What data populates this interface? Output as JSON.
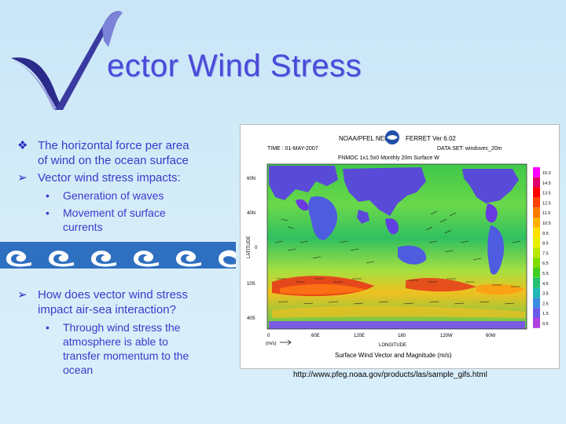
{
  "slide": {
    "title": "ector Wind Stress",
    "colors": {
      "title": "#4a4ad8",
      "bullet_text": "#3a3acb",
      "background": "#c9e6f7"
    },
    "bullets_top": [
      {
        "marker": "❖",
        "text_line1": "The horizontal force per area",
        "text_line2": "of wind on the ocean surface"
      },
      {
        "marker": "➢",
        "text_line1": "Vector wind stress impacts:",
        "text_line2": ""
      }
    ],
    "sub_bullets_top": [
      {
        "marker": "•",
        "text_line1": "Generation of waves",
        "text_line2": ""
      },
      {
        "marker": "•",
        "text_line1": "Movement of surface",
        "text_line2": "currents"
      }
    ],
    "bullets_bottom": [
      {
        "marker": "➢",
        "text_line1": "How does vector wind stress",
        "text_line2": "impact air-sea interaction?"
      }
    ],
    "sub_bullets_bottom": [
      {
        "marker": "•",
        "lines": [
          "Through wind stress the",
          "atmosphere is able to",
          "transfer momentum to the",
          "ocean"
        ]
      }
    ],
    "map": {
      "header_line1": "NOAA/PFEL NEPS",
      "header_right": "FERRET Ver 6.02",
      "time": "TIME : 01-MAY-2007",
      "dataset": "DATA SET: winduvec_20m",
      "subtitle": "FNMOC 1x1.5x0 Monthly 20m Surface W",
      "lat_ticks": [
        "60N",
        "40N",
        "0",
        "10S",
        "40S"
      ],
      "lon_ticks": [
        "0",
        "60E",
        "120E",
        "180",
        "120W",
        "60W"
      ],
      "lat_label": "LATITUDE",
      "lon_label": "LONGITUDE",
      "scale_units": "(m/s)",
      "caption": "Surface Wind Vector and Magnitude (m/s)",
      "colorbar_labels": [
        "15.0",
        "14.5",
        "13.5",
        "12.5",
        "11.5",
        "10.5",
        "9.5",
        "8.5",
        "7.5",
        "6.5",
        "5.5",
        "4.5",
        "3.5",
        "2.5",
        "1.5",
        "0.5"
      ],
      "colorbar_colors": [
        "#ff00ff",
        "#e0006a",
        "#ff0000",
        "#ff4000",
        "#ff7a00",
        "#ffb000",
        "#ffe000",
        "#e8f000",
        "#b8e800",
        "#7fdc00",
        "#3fcf20",
        "#22c070",
        "#20b8b8",
        "#3a8ce0",
        "#6a5ae8",
        "#b040e0"
      ]
    },
    "url": "http://www.pfeg.noaa.gov/products/las/sample_gifs.html"
  }
}
